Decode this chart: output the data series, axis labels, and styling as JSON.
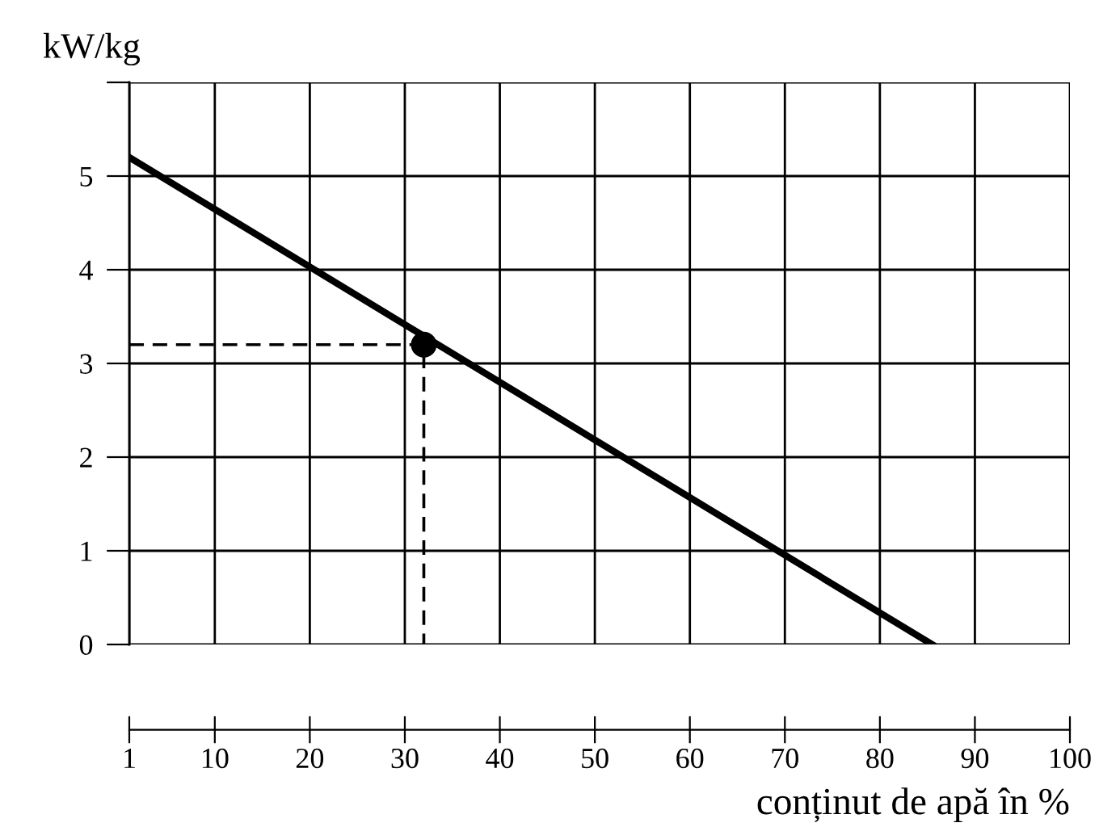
{
  "chart_data": {
    "type": "line",
    "xlabel": "conținut de apă în %",
    "ylabel": "kW/kg",
    "xlim": [
      1,
      100
    ],
    "ylim": [
      0,
      6
    ],
    "xticks": [
      1,
      10,
      20,
      30,
      40,
      50,
      60,
      70,
      80,
      90,
      100
    ],
    "yticks": [
      0,
      1,
      2,
      3,
      4,
      5,
      {
        "value": 6,
        "label": null
      }
    ],
    "grid": true,
    "legend": false,
    "series": [
      {
        "color": "#000000",
        "x": [
          1,
          85.5
        ],
        "values": [
          5.2,
          0
        ],
        "line_style": "solid",
        "marker": "none"
      },
      {
        "color": "#000000",
        "x": [
          1,
          32,
          32
        ],
        "values": [
          3.2,
          3.2,
          0
        ],
        "line_style": "dashed",
        "marker": "none"
      },
      {
        "type": "scatter",
        "color": "#000000",
        "x": [
          32
        ],
        "values": [
          3.2
        ],
        "marker": "circle"
      }
    ]
  }
}
